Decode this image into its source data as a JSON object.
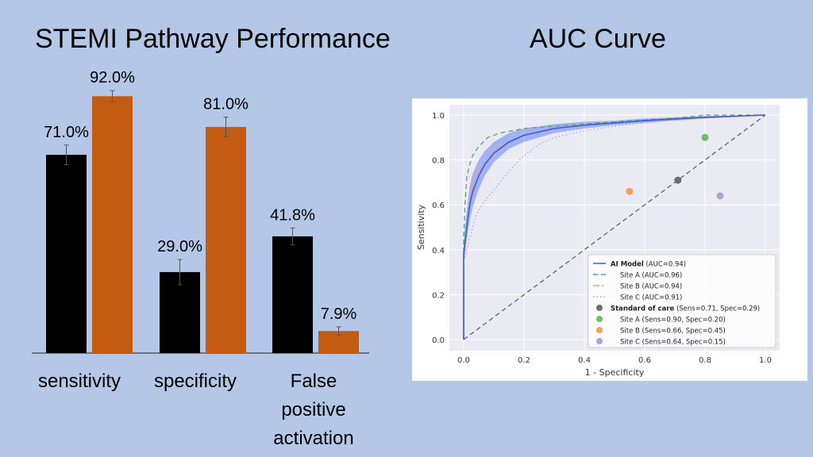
{
  "left_title": "STEMI Pathway Performance",
  "right_title": "AUC Curve",
  "chart_data": [
    {
      "type": "bar",
      "categories": [
        "sensitivity",
        "specificity",
        "False positive activation"
      ],
      "series": [
        {
          "values": [
            71.0,
            29.0,
            41.8
          ],
          "errors": [
            3.5,
            4.5,
            3.0
          ],
          "labels": [
            "71.0%",
            "29.0%",
            "41.8%"
          ],
          "color": "#000000"
        },
        {
          "values": [
            92.0,
            81.0,
            7.9
          ],
          "errors": [
            2.0,
            3.5,
            1.5
          ],
          "labels": [
            "92.0%",
            "81.0%",
            "7.9%"
          ],
          "color": "#c55a11"
        }
      ],
      "ylim": [
        0,
        100
      ]
    },
    {
      "type": "line",
      "xlabel": "1 - Specificity",
      "ylabel": "Sensitivity",
      "xlim": [
        0,
        1
      ],
      "ylim": [
        0,
        1
      ],
      "xticks": [
        "0.0",
        "0.2",
        "0.4",
        "0.6",
        "0.8",
        "1.0"
      ],
      "yticks": [
        "0.0",
        "0.2",
        "0.4",
        "0.6",
        "0.8",
        "1.0"
      ],
      "grid": true,
      "legend_position": "lower-right",
      "series": [
        {
          "name": "AI Model",
          "detail": " (AUC=0.94)",
          "bold": true,
          "color": "#3b5bdb",
          "dash": "none",
          "x": [
            0,
            0,
            0.01,
            0.02,
            0.03,
            0.05,
            0.07,
            0.1,
            0.15,
            0.2,
            0.3,
            0.4,
            0.5,
            0.6,
            0.8,
            1.0
          ],
          "y": [
            0,
            0.38,
            0.5,
            0.6,
            0.66,
            0.73,
            0.78,
            0.83,
            0.88,
            0.91,
            0.94,
            0.955,
            0.965,
            0.975,
            0.99,
            1.0
          ],
          "band_low": [
            0,
            0.33,
            0.44,
            0.53,
            0.59,
            0.67,
            0.73,
            0.79,
            0.85,
            0.88,
            0.92,
            0.94,
            0.955,
            0.965,
            0.985,
            1.0
          ],
          "band_high": [
            0,
            0.44,
            0.57,
            0.68,
            0.74,
            0.8,
            0.84,
            0.88,
            0.92,
            0.94,
            0.96,
            0.97,
            0.975,
            0.985,
            0.995,
            1.0
          ]
        },
        {
          "name": "Site A",
          "detail": " (AUC=0.96)",
          "bold": false,
          "color": "#55a868",
          "dash": "6,4",
          "x": [
            0,
            0,
            0.005,
            0.01,
            0.02,
            0.03,
            0.05,
            0.08,
            0.12,
            0.2,
            0.3,
            0.5,
            0.7,
            0.8,
            1.0
          ],
          "y": [
            0,
            0.45,
            0.62,
            0.72,
            0.78,
            0.82,
            0.86,
            0.9,
            0.92,
            0.94,
            0.95,
            0.97,
            0.985,
            1.0,
            1.0
          ]
        },
        {
          "name": "Site B",
          "detail": " (AUC=0.94)",
          "bold": false,
          "color": "#f0a060",
          "dash": "8,3,2,3",
          "x": [
            0,
            0,
            0.01,
            0.02,
            0.03,
            0.05,
            0.08,
            0.1,
            0.15,
            0.2,
            0.3,
            0.5,
            0.7,
            1.0
          ],
          "y": [
            0,
            0.36,
            0.48,
            0.62,
            0.7,
            0.75,
            0.8,
            0.84,
            0.88,
            0.91,
            0.94,
            0.965,
            0.98,
            1.0
          ]
        },
        {
          "name": "Site C",
          "detail": " (AUC=0.91)",
          "bold": false,
          "color": "#b39ddb",
          "dash": "1.5,3",
          "x": [
            0,
            0,
            0.01,
            0.02,
            0.04,
            0.06,
            0.09,
            0.12,
            0.15,
            0.2,
            0.25,
            0.3,
            0.4,
            0.5,
            0.7,
            1.0
          ],
          "y": [
            0,
            0.35,
            0.4,
            0.45,
            0.55,
            0.6,
            0.65,
            0.7,
            0.75,
            0.82,
            0.87,
            0.9,
            0.93,
            0.95,
            0.98,
            1.0
          ]
        }
      ],
      "points": [
        {
          "name": "Standard of care",
          "detail": " (Sens=0.71, Spec=0.29)",
          "bold": true,
          "color": "#6e6e6e",
          "x": 0.71,
          "y": 0.71
        },
        {
          "name": "Site A",
          "detail": "  (Sens=0.90, Spec=0.20)",
          "bold": false,
          "color": "#6abf69",
          "x": 0.8,
          "y": 0.9
        },
        {
          "name": "Site B",
          "detail": "  (Sens=0.66, Spec=0.45)",
          "bold": false,
          "color": "#f4a261",
          "x": 0.55,
          "y": 0.66
        },
        {
          "name": "Site C",
          "detail": "  (Sens=0.64, Spec=0.15)",
          "bold": false,
          "color": "#b39ddb",
          "x": 0.85,
          "y": 0.64
        }
      ]
    }
  ]
}
